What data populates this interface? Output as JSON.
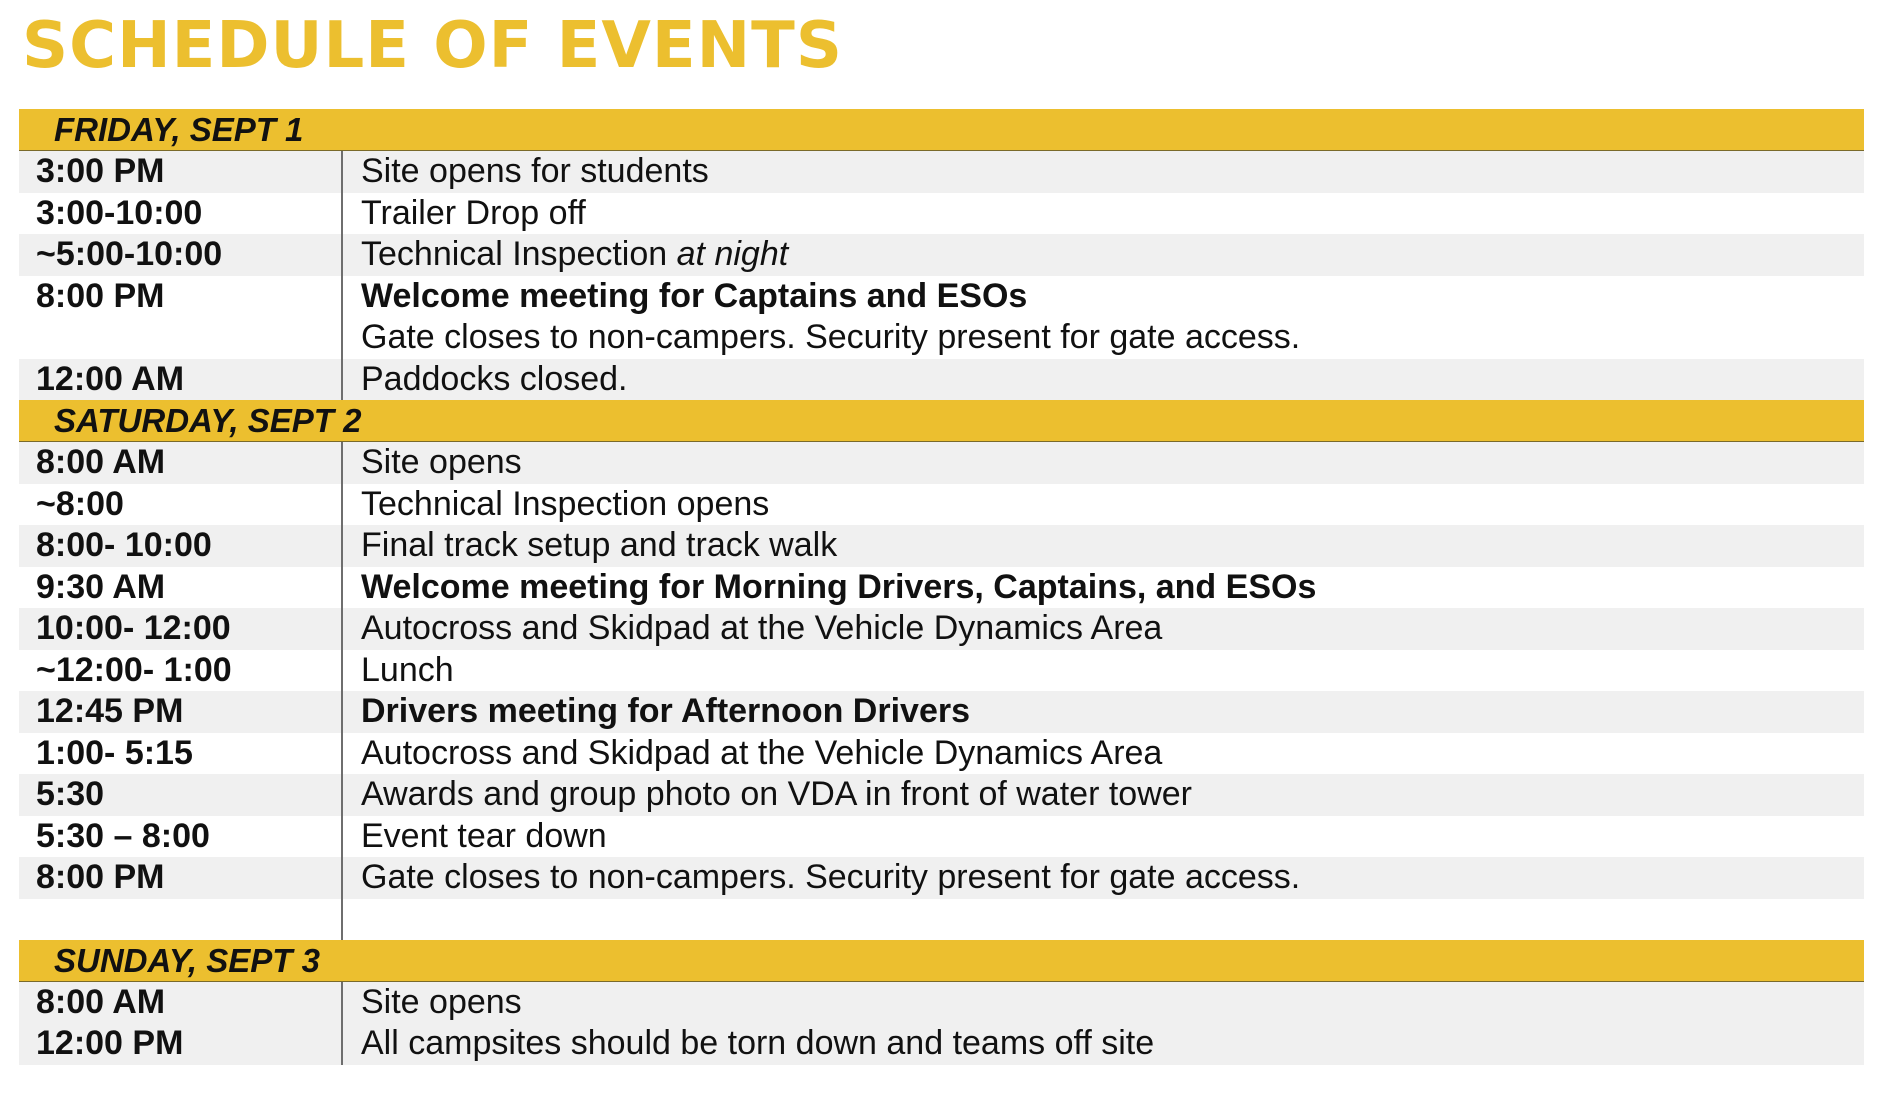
{
  "title": "SCHEDULE OF EVENTS",
  "days": [
    {
      "header": "FRIDAY, SEPT 1",
      "rows": [
        {
          "time": "3:00 PM",
          "event": "Site opens for students"
        },
        {
          "time": "3:00-10:00",
          "event": "Trailer Drop off"
        },
        {
          "time": "~5:00-10:00",
          "event": "Technical Inspection",
          "event_suffix": "at night"
        },
        {
          "time": "8:00 PM",
          "event": "Welcome meeting for Captains and ESOs",
          "event_line2": "Gate closes to non-campers. Security present for gate access."
        },
        {
          "time": "12:00 AM",
          "event": "Paddocks closed."
        }
      ]
    },
    {
      "header": "SATURDAY, SEPT 2",
      "rows": [
        {
          "time": "8:00 AM",
          "event": "Site opens"
        },
        {
          "time": "~8:00",
          "event": "Technical Inspection opens"
        },
        {
          "time": "8:00- 10:00",
          "event": "Final track setup and track walk"
        },
        {
          "time": "9:30 AM",
          "event": "Welcome meeting for Morning Drivers, Captains, and ESOs"
        },
        {
          "time": "10:00- 12:00",
          "event": "Autocross and Skidpad at the Vehicle Dynamics Area"
        },
        {
          "time": "~12:00- 1:00",
          "event": "Lunch"
        },
        {
          "time": "12:45 PM",
          "event": "Drivers meeting for Afternoon Drivers"
        },
        {
          "time": "1:00- 5:15",
          "event": "Autocross and Skidpad at the Vehicle Dynamics Area"
        },
        {
          "time": "5:30",
          "event": "Awards and group photo on VDA in front of water tower"
        },
        {
          "time": "5:30 – 8:00",
          "event": "Event tear down"
        },
        {
          "time": "8:00 PM",
          "event": "Gate closes to non-campers. Security present for gate access."
        }
      ]
    },
    {
      "header": "SUNDAY, SEPT 3",
      "rows": [
        {
          "time": "8:00 AM",
          "event": "Site opens"
        },
        {
          "time": "12:00 PM",
          "event": "All campsites should be torn down and teams off site"
        }
      ]
    }
  ],
  "colors": {
    "header": "#ecbf2f",
    "title": "#ecbf2f",
    "row_alt": "#f0f0f0"
  }
}
